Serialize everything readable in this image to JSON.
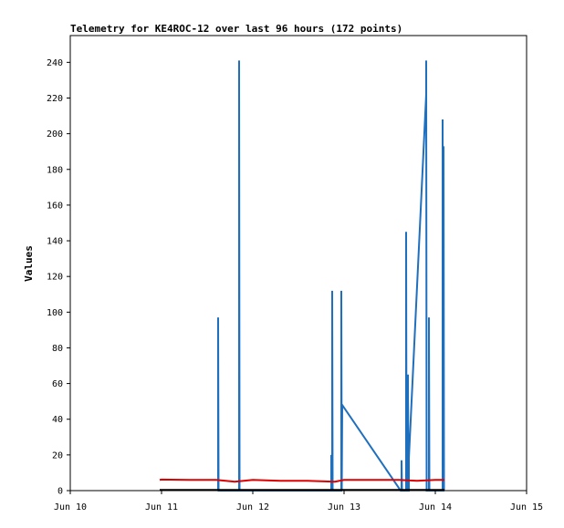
{
  "chart_data": {
    "type": "line",
    "title": "Telemetry for KE4ROC-12 over last 96 hours (172 points)",
    "xlabel": "",
    "ylabel": "Values",
    "xlim": [
      "Jun 10",
      "Jun 15"
    ],
    "ylim": [
      0,
      255
    ],
    "x_ticks": [
      "Jun 10",
      "Jun 11",
      "Jun 12",
      "Jun 13",
      "Jun 14",
      "Jun 15"
    ],
    "y_ticks": [
      0,
      20,
      40,
      60,
      80,
      100,
      120,
      140,
      160,
      180,
      200,
      220,
      240
    ],
    "grid": false,
    "legend": "none",
    "series": [
      {
        "color": "#1f6fbf",
        "x": [
          11.62,
          11.62,
          11.625,
          11.85,
          11.85,
          11.855,
          12.86,
          12.86,
          12.865,
          12.87,
          12.87,
          12.875,
          12.97,
          12.97,
          12.975,
          12.98,
          13.62,
          13.63,
          13.63,
          13.635,
          13.68,
          13.68,
          13.685,
          13.7,
          13.7,
          13.705,
          13.71,
          13.71,
          13.9,
          13.9,
          13.905,
          13.93,
          13.93,
          13.935,
          14.08,
          14.08,
          14.085,
          14.09,
          14.09,
          14.095,
          14.1
        ],
        "y": [
          0,
          97,
          0,
          0,
          241,
          0,
          0,
          20,
          0,
          0,
          112,
          0,
          0,
          112,
          0,
          48,
          0,
          0,
          17,
          0,
          0,
          145,
          0,
          0,
          65,
          0,
          0,
          18,
          222,
          241,
          0,
          0,
          97,
          0,
          0,
          208,
          0,
          0,
          193,
          0,
          0
        ]
      },
      {
        "color": "#dd0000",
        "x": [
          10.98,
          11.0,
          11.3,
          11.6,
          11.8,
          12.0,
          12.3,
          12.6,
          12.9,
          13.0,
          13.3,
          13.6,
          13.8,
          14.0,
          14.1
        ],
        "y": [
          6,
          6.2,
          6,
          6,
          5,
          6,
          5.5,
          5.5,
          5,
          6,
          6,
          6,
          5.5,
          6,
          6
        ]
      },
      {
        "color": "#000000",
        "x": [
          10.98,
          14.1
        ],
        "y": [
          0.4,
          0.4
        ]
      }
    ]
  }
}
